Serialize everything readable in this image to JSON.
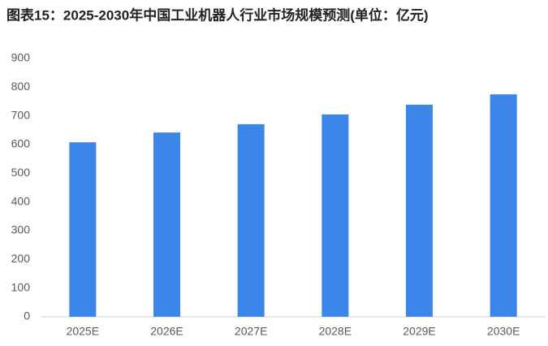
{
  "chart_data": {
    "type": "bar",
    "title": "图表15：2025-2030年中国工业机器人行业市场规模预测(单位：亿元)",
    "categories": [
      "2025E",
      "2026E",
      "2027E",
      "2028E",
      "2029E",
      "2030E"
    ],
    "values": [
      608,
      642,
      671,
      705,
      739,
      775
    ],
    "color": "#3b86e8",
    "ylim": [
      0,
      900
    ],
    "yticks": [
      0,
      100,
      200,
      300,
      400,
      500,
      600,
      700,
      800,
      900
    ],
    "grid": false
  }
}
